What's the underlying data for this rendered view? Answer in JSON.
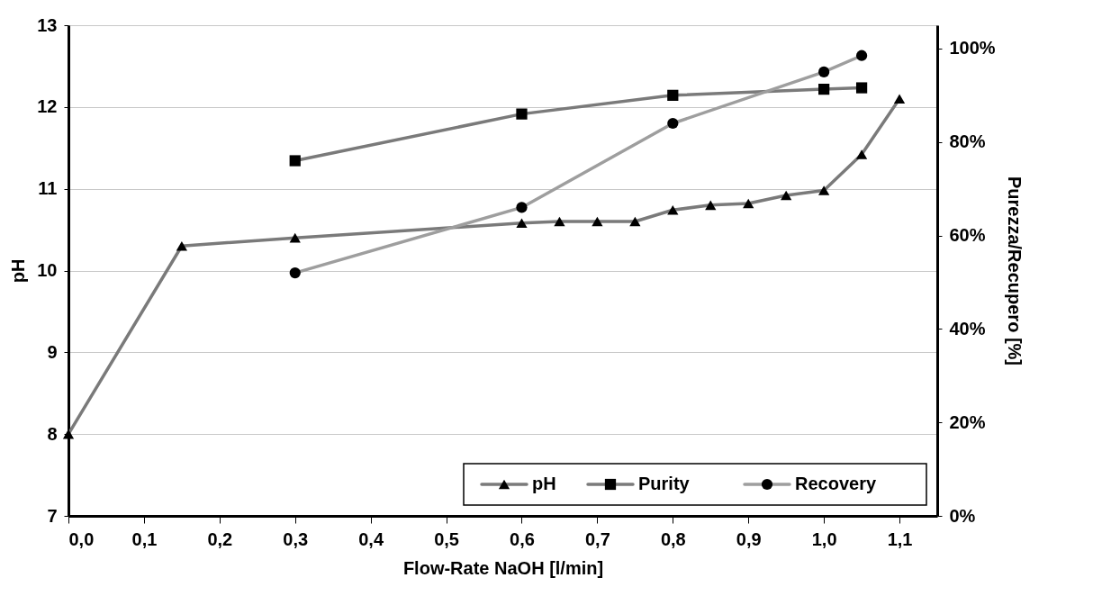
{
  "chart_data": {
    "type": "line",
    "xlabel": "Flow-Rate NaOH [l/min]",
    "ylabel": "pH",
    "y2label": "Purezza/Recupero [%]",
    "xlim": [
      0,
      1.15
    ],
    "xticks": [
      {
        "value": 0,
        "label": "0,0"
      },
      {
        "value": 0.1,
        "label": "0,1"
      },
      {
        "value": 0.2,
        "label": "0,2"
      },
      {
        "value": 0.3,
        "label": "0,3"
      },
      {
        "value": 0.4,
        "label": "0,4"
      },
      {
        "value": 0.5,
        "label": "0,5"
      },
      {
        "value": 0.6,
        "label": "0,6"
      },
      {
        "value": 0.7,
        "label": "0,7"
      },
      {
        "value": 0.8,
        "label": "0,8"
      },
      {
        "value": 0.9,
        "label": "0,9"
      },
      {
        "value": 1.0,
        "label": "1,0"
      },
      {
        "value": 1.1,
        "label": "1,1"
      }
    ],
    "ylim": [
      7,
      13
    ],
    "yticks": [
      7,
      8,
      9,
      10,
      11,
      12,
      13
    ],
    "y2lim": [
      0,
      105
    ],
    "y2ticks": [
      {
        "value": 0,
        "label": "0%"
      },
      {
        "value": 20,
        "label": "20%"
      },
      {
        "value": 40,
        "label": "40%"
      },
      {
        "value": 60,
        "label": "60%"
      },
      {
        "value": 80,
        "label": "80%"
      },
      {
        "value": 100,
        "label": "100%"
      }
    ],
    "grid": "y",
    "legend": "bottom right",
    "line_style": "solid",
    "series": [
      {
        "name": "pH",
        "color": "#7a7a7a",
        "marker": "triangle",
        "x": [
          0,
          0.15,
          0.3,
          0.6,
          0.65,
          0.7,
          0.75,
          0.8,
          0.85,
          0.9,
          0.95,
          1.0,
          1.05,
          1.1
        ],
        "values": [
          8.0,
          10.3,
          10.4,
          10.58,
          10.6,
          10.6,
          10.6,
          10.74,
          10.8,
          10.82,
          10.92,
          10.98,
          11.42,
          12.1
        ]
      },
      {
        "name": "Purity",
        "color": "#7a7a7a",
        "marker": "square",
        "axis": "y2",
        "x": [
          0.3,
          0.6,
          0.8,
          1.0,
          1.05
        ],
        "values": [
          76,
          86,
          90,
          91.3,
          91.6
        ]
      },
      {
        "name": "Recovery",
        "color": "#9e9e9e",
        "marker": "circle",
        "axis": "y2",
        "x": [
          0.3,
          0.6,
          0.8,
          1.0,
          1.05
        ],
        "values": [
          52,
          66,
          84,
          95,
          98.5
        ]
      }
    ]
  }
}
